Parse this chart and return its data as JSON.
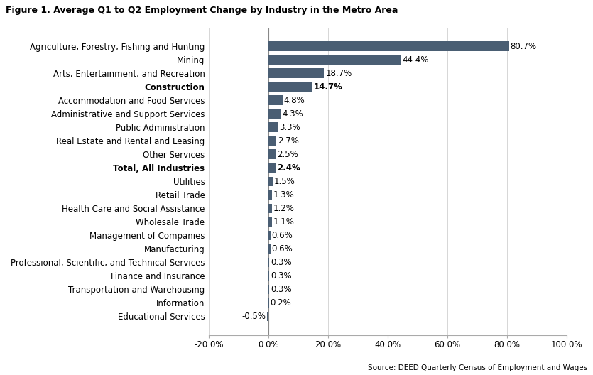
{
  "title": "Figure 1. Average Q1 to Q2 Employment Change by Industry in the Metro Area",
  "source": "Source: DEED Quarterly Census of Employment and Wages",
  "categories": [
    "Agriculture, Forestry, Fishing and Hunting",
    "Mining",
    "Arts, Entertainment, and Recreation",
    "Construction",
    "Accommodation and Food Services",
    "Administrative and Support Services",
    "Public Administration",
    "Real Estate and Rental and Leasing",
    "Other Services",
    "Total, All Industries",
    "Utilities",
    "Retail Trade",
    "Health Care and Social Assistance",
    "Wholesale Trade",
    "Management of Companies",
    "Manufacturing",
    "Professional, Scientific, and Technical Services",
    "Finance and Insurance",
    "Transportation and Warehousing",
    "Information",
    "Educational Services"
  ],
  "values": [
    80.7,
    44.4,
    18.7,
    14.7,
    4.8,
    4.3,
    3.3,
    2.7,
    2.5,
    2.4,
    1.5,
    1.3,
    1.2,
    1.1,
    0.6,
    0.6,
    0.3,
    0.3,
    0.3,
    0.2,
    -0.5
  ],
  "bold_labels": [
    "Construction",
    "Total, All Industries"
  ],
  "bar_color": "#4a5e73",
  "xlim": [
    -20,
    100
  ],
  "xticks": [
    -20,
    0,
    20,
    40,
    60,
    80,
    100
  ],
  "background_color": "#ffffff",
  "title_fontsize": 9,
  "label_fontsize": 8.5,
  "tick_fontsize": 8.5,
  "value_fontsize": 8.5
}
